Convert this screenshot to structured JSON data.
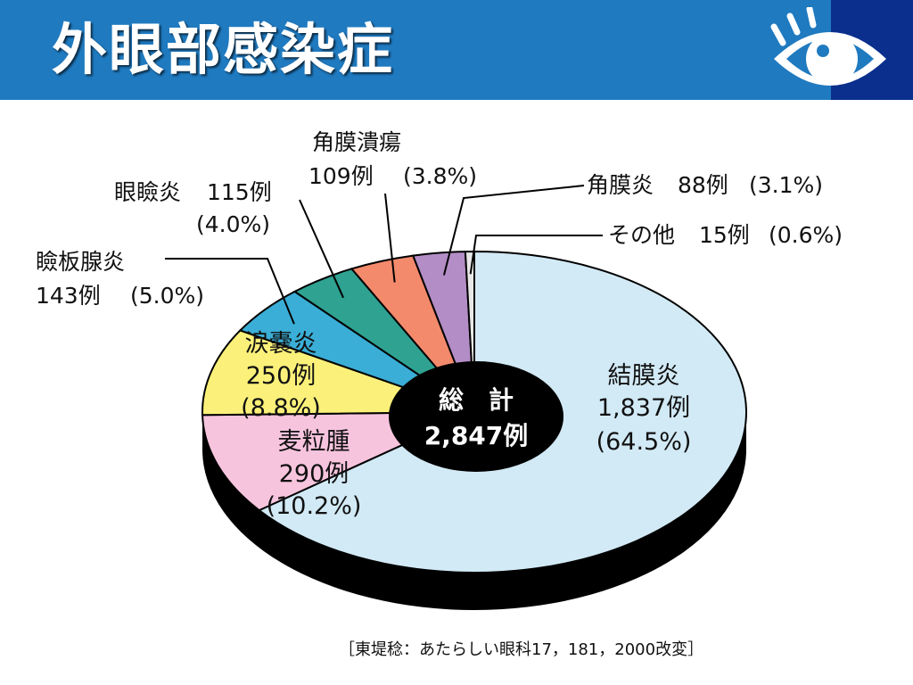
{
  "slide": {
    "title": "外眼部感染症",
    "icon": "eye-icon",
    "source": "［東堤稔：あたらしい眼科17，181，2000改変］",
    "colors": {
      "header": "#1f7ac0",
      "header_corner": "#0a2f8c"
    }
  },
  "chart_data": {
    "type": "pie",
    "total": {
      "line1": "総　計",
      "line2": "2,847例"
    },
    "slices": [
      {
        "name": "結膜炎",
        "count": 1837,
        "percent": 64.5,
        "count_label": "1,837例",
        "percent_label": "(64.5%)",
        "color": "#d2eaf6"
      },
      {
        "name": "麦粒腫",
        "count": 290,
        "percent": 10.2,
        "count_label": "290例",
        "percent_label": "(10.2%)",
        "color": "#f7c4de"
      },
      {
        "name": "涙嚢炎",
        "count": 250,
        "percent": 8.8,
        "count_label": "250例",
        "percent_label": "(8.8%)",
        "color": "#fbf17a"
      },
      {
        "name": "瞼板腺炎",
        "count": 143,
        "percent": 5.0,
        "count_label": "143例",
        "percent_label": "(5.0%)",
        "color": "#3aaed6"
      },
      {
        "name": "眼瞼炎",
        "count": 115,
        "percent": 4.0,
        "count_label": "115例",
        "percent_label": "(4.0%)",
        "color": "#2fa292"
      },
      {
        "name": "角膜潰瘍",
        "count": 109,
        "percent": 3.8,
        "count_label": "109例",
        "percent_label": "(3.8%)",
        "color": "#f38a6c"
      },
      {
        "name": "角膜炎",
        "count": 88,
        "percent": 3.1,
        "count_label": "88例",
        "percent_label": "(3.1%)",
        "color": "#b38dc6"
      },
      {
        "name": "その他",
        "count": 15,
        "percent": 0.6,
        "count_label": "15例",
        "percent_label": "(0.6%)",
        "color": "#e8e8e8"
      }
    ]
  }
}
